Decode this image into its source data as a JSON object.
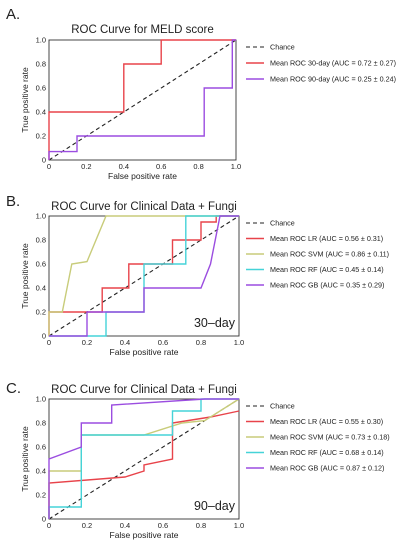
{
  "chart_data": [
    {
      "type": "line",
      "panel": "A.",
      "title": "ROC Curve for MELD score",
      "xlabel": "False positive rate",
      "ylabel": "True positive rate",
      "xlim": [
        0,
        1
      ],
      "ylim": [
        0,
        1
      ],
      "x_ticks": [
        "0",
        "0.2",
        "0.4",
        "0.6",
        "0.8",
        "1.0"
      ],
      "y_ticks": [
        "0",
        "0.2",
        "0.4",
        "0.6",
        "0.8",
        "1.0"
      ],
      "grid": false,
      "legend_position": "right",
      "annotation": "",
      "chance_label": "Chance",
      "series": [
        {
          "name": "Mean ROC 30-day  (AUC = 0.72 ± 0.27)",
          "color": "#e8434a",
          "x": [
            0,
            0,
            0.4,
            0.4,
            0.6,
            0.6,
            1.0
          ],
          "y": [
            0,
            0.4,
            0.4,
            0.8,
            0.8,
            1.0,
            1.0
          ]
        },
        {
          "name": "Mean ROC 90-day (AUC = 0.25 ± 0.24)",
          "color": "#9b4de0",
          "x": [
            0,
            0,
            0.15,
            0.15,
            0.83,
            0.83,
            0.98,
            0.98,
            1.0
          ],
          "y": [
            0,
            0.07,
            0.07,
            0.2,
            0.2,
            0.6,
            0.6,
            1.0,
            1.0
          ]
        }
      ]
    },
    {
      "type": "line",
      "panel": "B.",
      "title": "ROC Curve for Clinical Data + Fungi",
      "xlabel": "False positive rate",
      "ylabel": "True positive rate",
      "xlim": [
        0,
        1
      ],
      "ylim": [
        0,
        1
      ],
      "x_ticks": [
        "0",
        "0.2",
        "0.4",
        "0.6",
        "0.8",
        "1.0"
      ],
      "y_ticks": [
        "0",
        "0.2",
        "0.4",
        "0.6",
        "0.8",
        "1.0"
      ],
      "grid": false,
      "legend_position": "right",
      "annotation": "30–day",
      "chance_label": "Chance",
      "series": [
        {
          "name": "Mean ROC LR (AUC = 0.56 ± 0.31)",
          "color": "#e8434a",
          "x": [
            0,
            0,
            0.28,
            0.28,
            0.42,
            0.42,
            0.65,
            0.65,
            0.8,
            0.8,
            0.88,
            0.88,
            1.0
          ],
          "y": [
            0,
            0.2,
            0.2,
            0.4,
            0.4,
            0.6,
            0.6,
            0.8,
            0.8,
            0.95,
            0.95,
            1.0,
            1.0
          ]
        },
        {
          "name": "Mean ROC SVM (AUC = 0.86 ± 0.11)",
          "color": "#c8cc7a",
          "x": [
            0,
            0,
            0.07,
            0.12,
            0.12,
            0.2,
            0.3,
            1.0
          ],
          "y": [
            0,
            0.2,
            0.2,
            0.6,
            0.6,
            0.62,
            1.0,
            1.0
          ]
        },
        {
          "name": "Mean ROC RF (AUC = 0.45 ± 0.14)",
          "color": "#45d3d8",
          "x": [
            0,
            0.28,
            0.3,
            0.3,
            0.5,
            0.5,
            0.72,
            0.72,
            1.0
          ],
          "y": [
            0,
            0,
            0,
            0.2,
            0.2,
            0.6,
            0.6,
            1.0,
            1.0
          ]
        },
        {
          "name": "Mean ROC GB (AUC = 0.35 ± 0.29)",
          "color": "#9b4de0",
          "x": [
            0,
            0.2,
            0.2,
            0.5,
            0.5,
            0.8,
            0.85,
            0.9,
            1.0
          ],
          "y": [
            0,
            0,
            0.2,
            0.2,
            0.4,
            0.4,
            0.6,
            1.0,
            1.0
          ]
        }
      ]
    },
    {
      "type": "line",
      "panel": "C.",
      "title": "ROC Curve for Clinical Data + Fungi",
      "xlabel": "False positive rate",
      "ylabel": "True positive rate",
      "xlim": [
        0,
        1
      ],
      "ylim": [
        0,
        1
      ],
      "x_ticks": [
        "0",
        "0.2",
        "0.4",
        "0.6",
        "0.8",
        "1.0"
      ],
      "y_ticks": [
        "0",
        "0.2",
        "0.4",
        "0.6",
        "0.8",
        "1.0"
      ],
      "grid": false,
      "legend_position": "right",
      "annotation": "90–day",
      "chance_label": "Chance",
      "series": [
        {
          "name": "Mean ROC LR (AUC = 0.55 ± 0.30)",
          "color": "#e8434a",
          "x": [
            0,
            0,
            0.4,
            0.5,
            0.5,
            0.65,
            0.65,
            0.85,
            1.0
          ],
          "y": [
            0,
            0.3,
            0.35,
            0.4,
            0.45,
            0.5,
            0.8,
            0.85,
            0.9
          ]
        },
        {
          "name": "Mean ROC SVM (AUC = 0.73 ± 0.18)",
          "color": "#c8cc7a",
          "x": [
            0,
            0,
            0.17,
            0.17,
            0.5,
            0.7,
            0.82,
            1.0
          ],
          "y": [
            0,
            0.4,
            0.4,
            0.7,
            0.7,
            0.8,
            0.82,
            1.0
          ]
        },
        {
          "name": "Mean ROC RF (AUC = 0.68 ± 0.14)",
          "color": "#45d3d8",
          "x": [
            0,
            0,
            0.17,
            0.17,
            0.65,
            0.65,
            0.8,
            0.8,
            1.0
          ],
          "y": [
            0,
            0.1,
            0.1,
            0.7,
            0.7,
            0.9,
            0.9,
            1.0,
            1.0
          ]
        },
        {
          "name": "Mean ROC GB (AUC = 0.87 ± 0.12)",
          "color": "#9b4de0",
          "x": [
            0,
            0,
            0.17,
            0.17,
            0.33,
            0.33,
            0.82,
            1.0
          ],
          "y": [
            0,
            0.5,
            0.6,
            0.8,
            0.8,
            0.95,
            1.0,
            1.0
          ]
        }
      ]
    }
  ]
}
